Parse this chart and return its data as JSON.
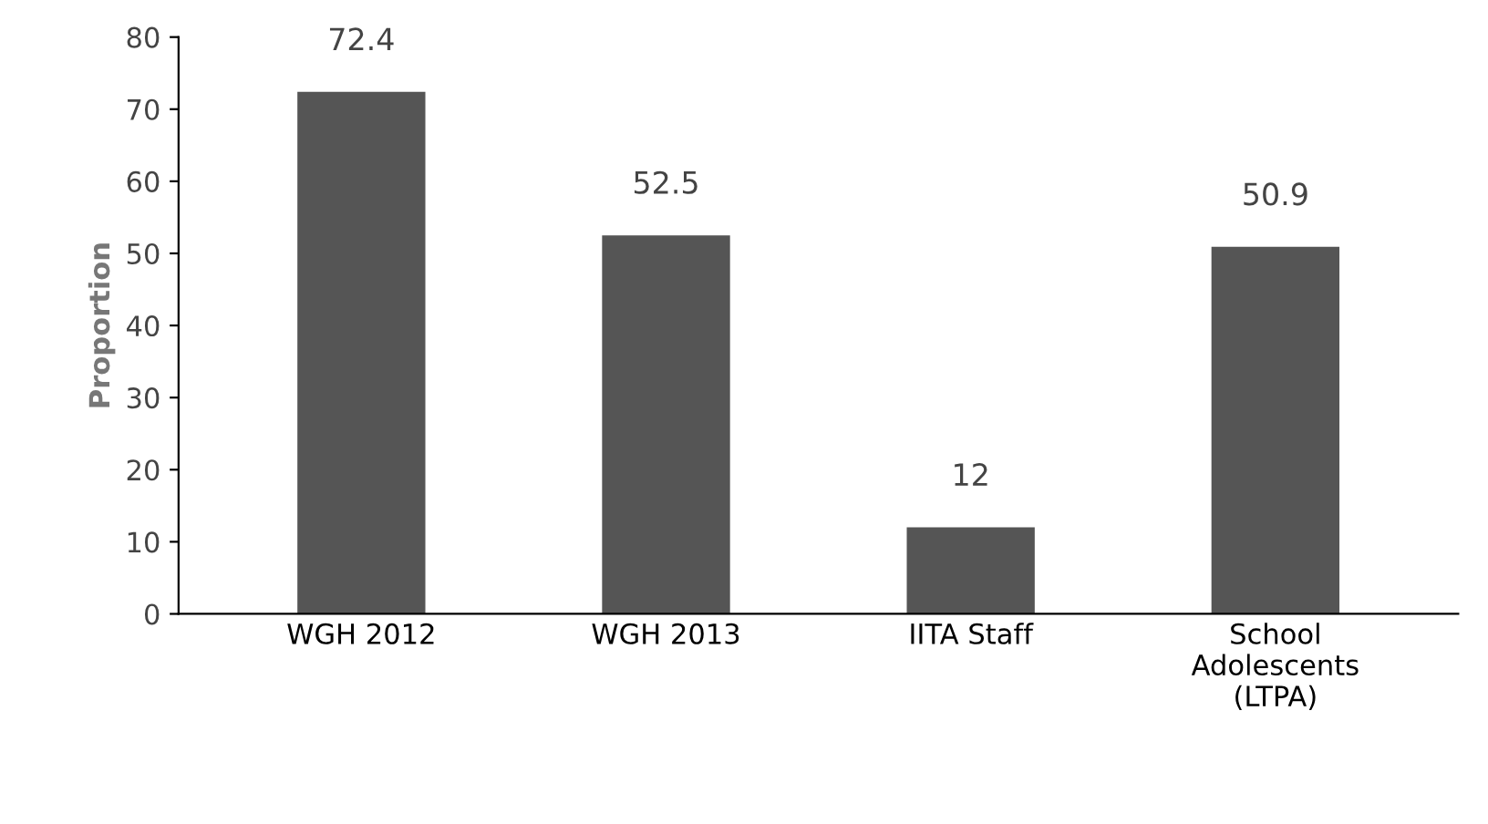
{
  "chart_data": {
    "type": "bar",
    "ylabel": "Proportion",
    "categories": [
      "WGH 2012",
      "WGH 2013",
      "IITA Staff",
      "School\nAdolescents\n(LTPA)"
    ],
    "values": [
      72.4,
      52.5,
      12,
      50.9
    ],
    "color": "#555555",
    "ylim": [
      0,
      80
    ],
    "yticks": [
      0,
      10,
      20,
      30,
      40,
      50,
      60,
      70,
      80
    ],
    "data_labels": true,
    "grid": false
  }
}
